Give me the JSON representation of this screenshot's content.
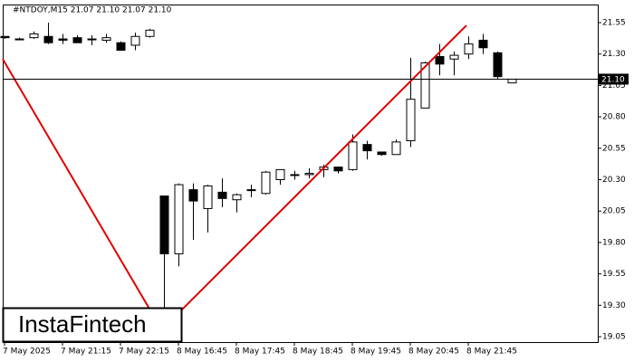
{
  "chart_data": {
    "type": "candlestick",
    "title": "#NTDOY,M15  21.07 21.10 21.07 21.10",
    "categories": [
      "7 May 2025",
      null,
      null,
      null,
      "7 May 21:15",
      null,
      null,
      null,
      "7 May 22:15",
      null,
      null,
      null,
      "8 May 16:45",
      null,
      null,
      null,
      "8 May 17:45",
      null,
      null,
      null,
      "8 May 18:45",
      null,
      null,
      null,
      "8 May 19:45",
      null,
      null,
      null,
      "8 May 20:45",
      null,
      null,
      null,
      "8 May 21:45",
      null,
      null,
      null
    ],
    "open": [
      21.44,
      21.42,
      21.43,
      21.44,
      21.42,
      21.43,
      21.42,
      21.41,
      21.39,
      21.37,
      21.44,
      20.17,
      19.71,
      20.22,
      20.07,
      20.2,
      20.14,
      20.22,
      20.19,
      20.3,
      20.34,
      20.34,
      20.38,
      20.4,
      20.38,
      20.58,
      20.52,
      20.5,
      20.61,
      20.87,
      21.28,
      21.26,
      21.3,
      21.41,
      21.31,
      21.07
    ],
    "high": [
      21.44,
      21.43,
      21.48,
      21.55,
      21.46,
      21.45,
      21.45,
      21.46,
      21.4,
      21.47,
      21.5,
      20.17,
      20.27,
      20.27,
      20.26,
      20.31,
      20.19,
      20.26,
      20.37,
      20.38,
      20.37,
      20.39,
      20.42,
      20.4,
      20.66,
      20.61,
      20.52,
      20.62,
      21.27,
      21.24,
      21.38,
      21.32,
      21.44,
      21.46,
      21.32,
      21.1
    ],
    "low": [
      21.42,
      21.41,
      21.42,
      21.38,
      21.38,
      21.39,
      21.37,
      21.39,
      21.33,
      21.33,
      21.43,
      19.27,
      19.61,
      19.82,
      19.88,
      20.08,
      20.04,
      20.16,
      20.18,
      20.26,
      20.3,
      20.31,
      20.32,
      20.35,
      20.37,
      20.46,
      20.49,
      20.5,
      20.56,
      20.87,
      21.13,
      21.13,
      21.26,
      21.3,
      21.1,
      21.07
    ],
    "close": [
      21.43,
      21.42,
      21.46,
      21.39,
      21.41,
      21.39,
      21.42,
      21.43,
      21.33,
      21.44,
      21.49,
      19.71,
      20.26,
      20.13,
      20.25,
      20.15,
      20.18,
      20.22,
      20.36,
      20.38,
      20.34,
      20.35,
      20.4,
      20.37,
      20.6,
      20.53,
      20.5,
      20.6,
      20.94,
      21.23,
      21.22,
      21.29,
      21.38,
      21.35,
      21.12,
      21.1
    ],
    "up_color": "#ffffff",
    "down_color": "#000000",
    "ylim": [
      19.007,
      21.694
    ],
    "yticks": [
      21.55,
      {
        "value": 21.3,
        "label": "21.30"
      },
      21.05,
      {
        "value": 20.8,
        "label": "20.80"
      },
      20.55,
      {
        "value": 20.3,
        "label": "20.30"
      },
      20.05,
      {
        "value": 19.8,
        "label": "19.80"
      },
      19.55,
      {
        "value": 19.3,
        "label": "19.30"
      },
      19.05
    ],
    "current_price": {
      "value": 21.1,
      "label": "21.10"
    },
    "pattern_line": {
      "color": "#e00000",
      "x": [
        -0.125,
        10.85,
        31.875
      ],
      "values": [
        21.26,
        19.105,
        21.528
      ]
    },
    "watermark": "InstaFintech"
  }
}
